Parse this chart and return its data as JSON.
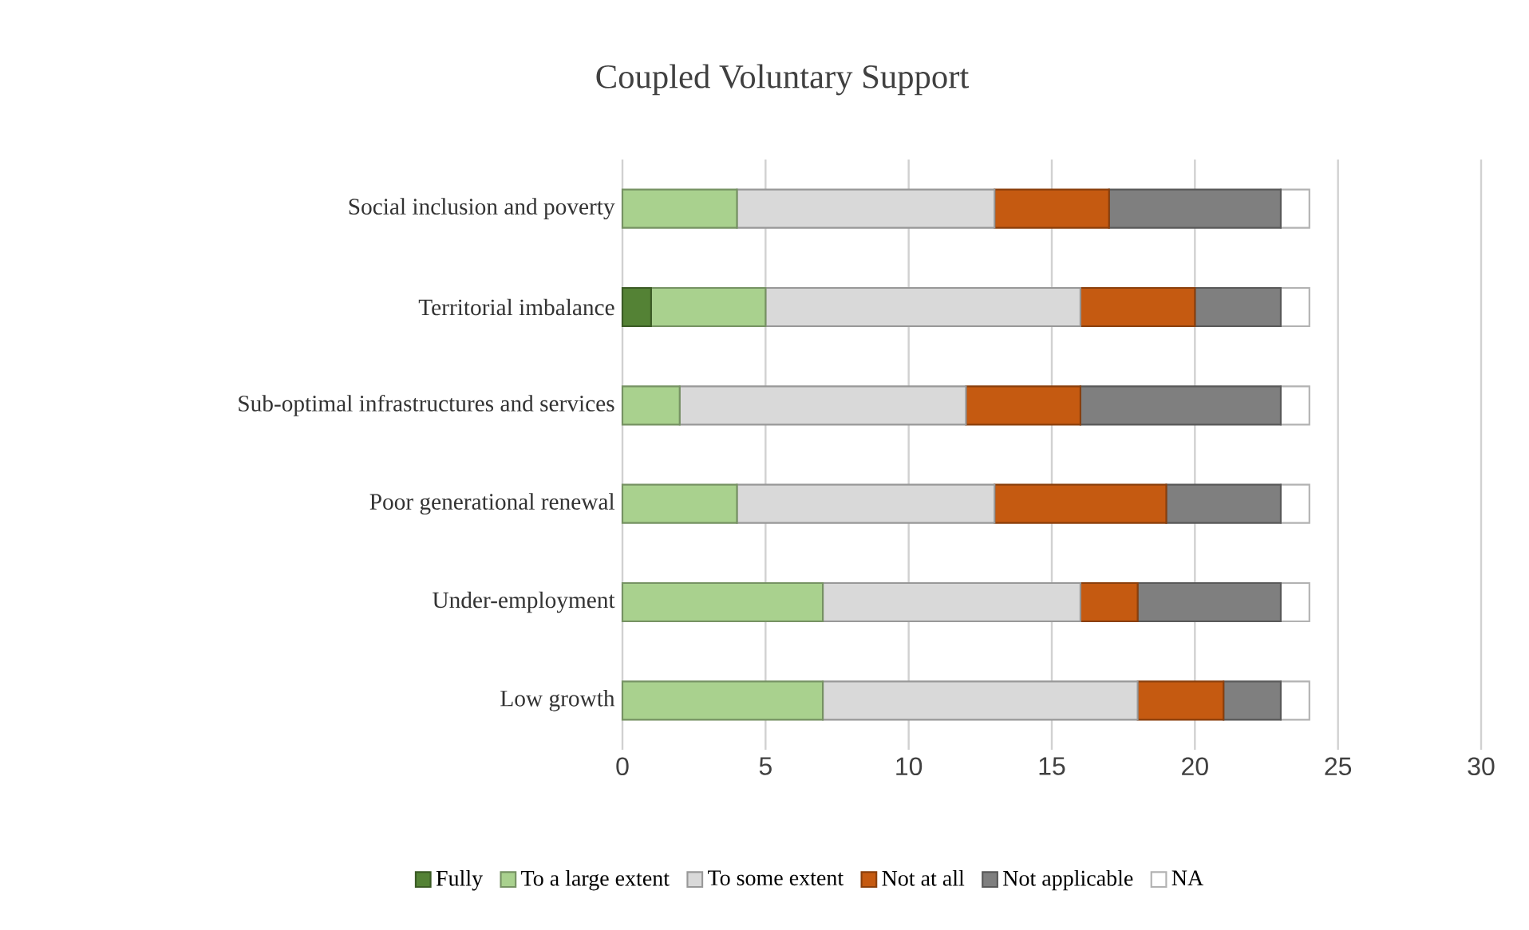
{
  "chart_data": {
    "type": "bar",
    "orientation": "horizontal",
    "stacked": true,
    "title": "Coupled Voluntary Support",
    "categories": [
      "Social inclusion and poverty",
      "Territorial imbalance",
      "Sub-optimal infrastructures and services",
      "Poor generational renewal",
      "Under-employment",
      "Low growth"
    ],
    "series": [
      {
        "name": "Fully",
        "color": "#548235",
        "values": [
          0,
          1,
          0,
          0,
          0,
          0
        ]
      },
      {
        "name": "To a large extent",
        "color": "#a9d18e",
        "values": [
          4,
          4,
          2,
          4,
          7,
          7
        ]
      },
      {
        "name": "To some extent",
        "color": "#d9d9d9",
        "values": [
          9,
          11,
          10,
          9,
          9,
          11
        ]
      },
      {
        "name": "Not at all",
        "color": "#c55a11",
        "values": [
          4,
          4,
          4,
          6,
          2,
          3
        ]
      },
      {
        "name": "Not applicable",
        "color": "#7f7f7f",
        "values": [
          6,
          3,
          7,
          4,
          5,
          2
        ]
      },
      {
        "name": "NA",
        "color": "#ffffff",
        "values": [
          1,
          1,
          1,
          1,
          1,
          1
        ]
      }
    ],
    "xlim": [
      0,
      30
    ],
    "xticks": [
      0,
      5,
      10,
      15,
      20,
      25,
      30
    ],
    "grid": "x",
    "legend": "bottom"
  }
}
